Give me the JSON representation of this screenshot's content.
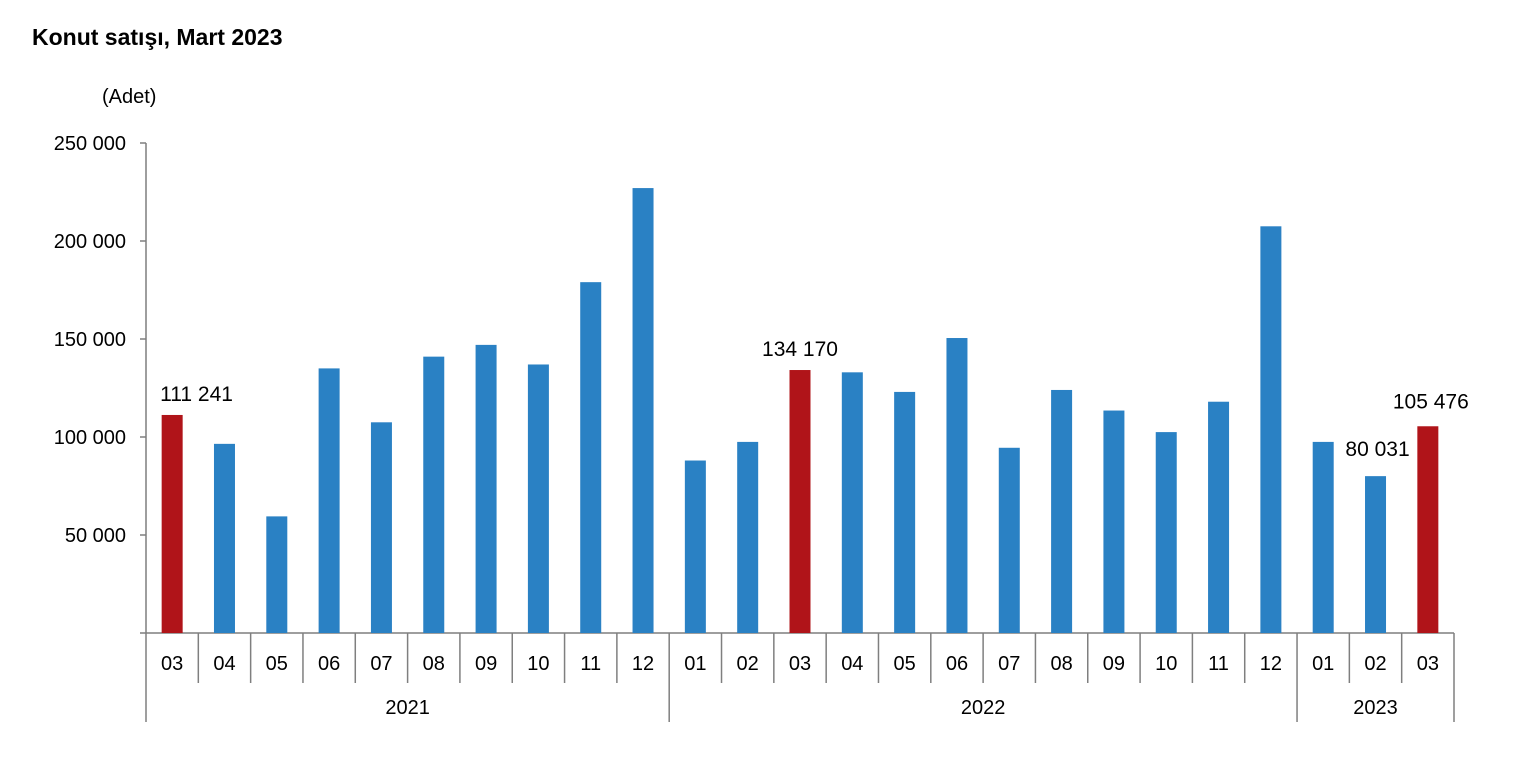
{
  "chart_data": {
    "type": "bar",
    "title": "Konut satışı, Mart 2023",
    "unit_label": "(Adet)",
    "ylim": [
      0,
      250000
    ],
    "yticks": [
      50000,
      100000,
      150000,
      200000,
      250000
    ],
    "ytick_labels": [
      "50 000",
      "100 000",
      "150 000",
      "200 000",
      "250 000"
    ],
    "grid": false,
    "categories": [
      "03",
      "04",
      "05",
      "06",
      "07",
      "08",
      "09",
      "10",
      "11",
      "12",
      "01",
      "02",
      "03",
      "04",
      "05",
      "06",
      "07",
      "08",
      "09",
      "10",
      "11",
      "12",
      "01",
      "02",
      "03"
    ],
    "years": [
      {
        "label": "2021",
        "count": 10
      },
      {
        "label": "2022",
        "count": 12
      },
      {
        "label": "2023",
        "count": 3
      }
    ],
    "values": [
      111241,
      96500,
      59500,
      135000,
      107500,
      141000,
      147000,
      137000,
      179000,
      227000,
      88000,
      97500,
      134170,
      133000,
      123000,
      150500,
      94500,
      124000,
      113500,
      102500,
      118000,
      207500,
      97500,
      80031,
      105476
    ],
    "highlighted": [
      0,
      12,
      24
    ],
    "data_labels": [
      {
        "index": 0,
        "text": "111 241"
      },
      {
        "index": 12,
        "text": "134 170"
      },
      {
        "index": 23,
        "text": "80 031"
      },
      {
        "index": 24,
        "text": "105 476"
      }
    ],
    "colors": {
      "bar": "#2a81c4",
      "highlight": "#b01419",
      "axis": "#7f7f7f"
    }
  }
}
